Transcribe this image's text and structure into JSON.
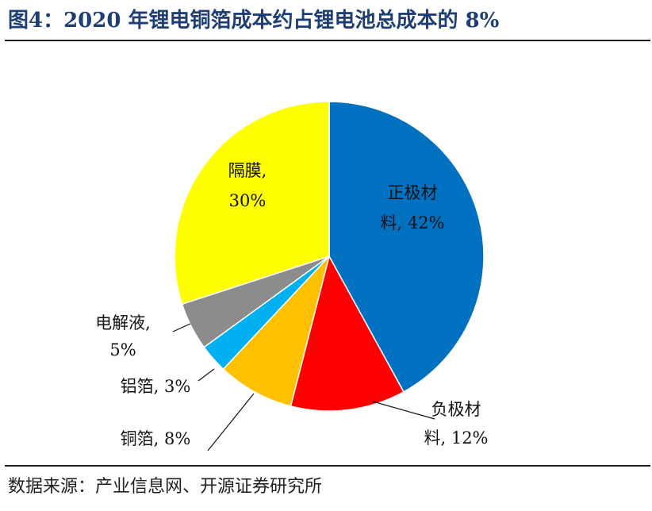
{
  "title": "图4：2020 年锂电铜箔成本约占锂电池总成本的 8%",
  "source": "数据来源：产业信息网、开源证券研究所",
  "colors": {
    "title": "#1f3e73",
    "cathode": "#0070c0",
    "anode": "#ff0000",
    "copper_foil": "#ffc000",
    "aluminum_foil": "#00b0f0",
    "electrolyte": "#8c8c8c",
    "separator": "#ffff00"
  },
  "chart_data": {
    "type": "pie",
    "title": "",
    "start_angle_deg": 0,
    "direction": "clockwise",
    "slices": [
      {
        "category": "正极材料",
        "value": 42,
        "color": "#0070c0",
        "label_lines": [
          "正极材",
          "料, 42%"
        ]
      },
      {
        "category": "负极材料",
        "value": 12,
        "color": "#ff0000",
        "label_lines": [
          "负极材",
          "料, 12%"
        ]
      },
      {
        "category": "铜箔",
        "value": 8,
        "color": "#ffc000",
        "label_lines": [
          "铜箔, 8%"
        ]
      },
      {
        "category": "铝箔",
        "value": 3,
        "color": "#00b0f0",
        "label_lines": [
          "铝箔, 3%"
        ]
      },
      {
        "category": "电解液",
        "value": 5,
        "color": "#8c8c8c",
        "label_lines": [
          "电解液,",
          "5%"
        ]
      },
      {
        "category": "隔膜",
        "value": 30,
        "color": "#ffff00",
        "label_lines": [
          "隔膜,",
          "30%"
        ]
      }
    ]
  }
}
